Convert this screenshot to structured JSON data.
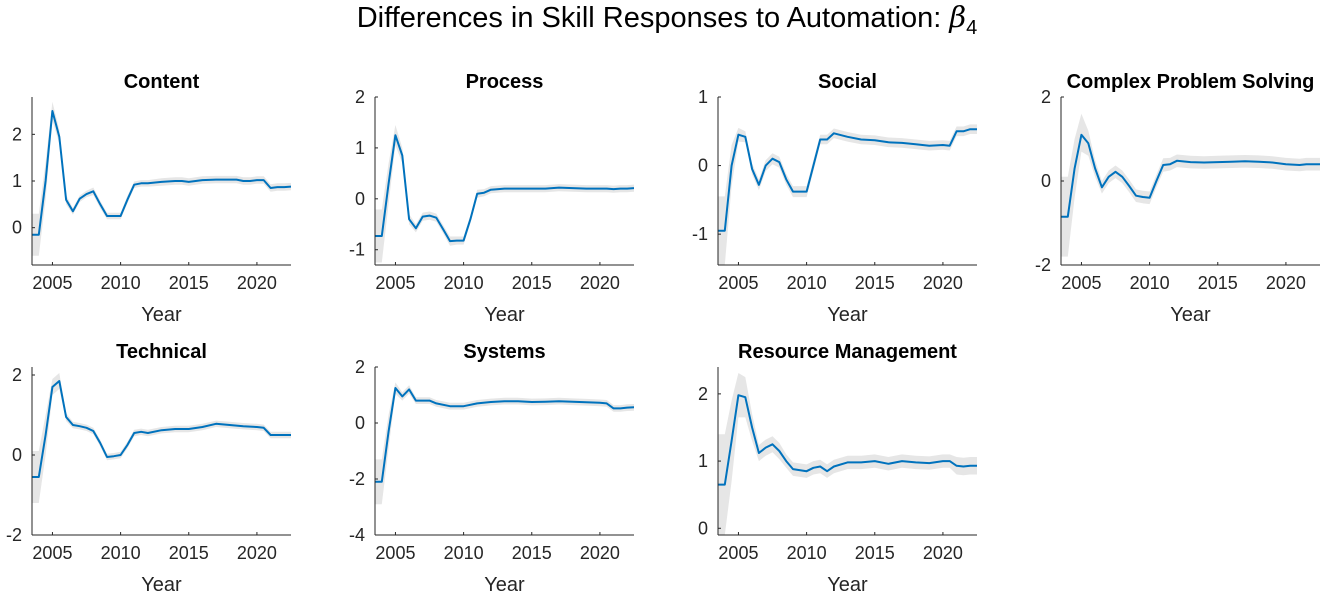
{
  "figure": {
    "title_text": "Differences in Skill Responses to Automation: ",
    "title_symbol": "β",
    "title_subscript": "4",
    "line_color": "#0072BD",
    "band_color": "#E6E6E6"
  },
  "chart_data": [
    {
      "type": "line",
      "title": "Content",
      "xlabel": "Year",
      "ylabel": "",
      "xlim": [
        2003.5,
        2022.5
      ],
      "ylim": [
        -0.8,
        2.8
      ],
      "xticks": [
        2005,
        2010,
        2015,
        2020
      ],
      "yticks": [
        0,
        1,
        2
      ],
      "x": [
        2003.5,
        2004.0,
        2004.5,
        2005.0,
        2005.5,
        2006.0,
        2006.5,
        2007.0,
        2007.5,
        2008.0,
        2008.5,
        2009.0,
        2009.5,
        2010.0,
        2010.5,
        2011.0,
        2011.5,
        2012.0,
        2013.0,
        2014.0,
        2014.5,
        2015.0,
        2016.0,
        2017.0,
        2018.0,
        2018.5,
        2019.0,
        2019.5,
        2020.0,
        2020.5,
        2021.0,
        2021.5,
        2022.0,
        2022.5
      ],
      "series": [
        {
          "values": [
            -0.15,
            -0.15,
            1.0,
            2.5,
            1.95,
            0.6,
            0.35,
            0.62,
            0.72,
            0.78,
            0.5,
            0.25,
            0.25,
            0.25,
            0.6,
            0.92,
            0.95,
            0.95,
            0.98,
            1.0,
            1.0,
            0.98,
            1.02,
            1.03,
            1.03,
            1.03,
            1.0,
            1.0,
            1.02,
            1.02,
            0.85,
            0.87,
            0.87,
            0.88
          ],
          "lower": [
            -0.6,
            -0.6,
            0.6,
            2.3,
            1.8,
            0.5,
            0.28,
            0.55,
            0.65,
            0.7,
            0.42,
            0.18,
            0.18,
            0.18,
            0.52,
            0.85,
            0.88,
            0.88,
            0.9,
            0.92,
            0.92,
            0.9,
            0.94,
            0.95,
            0.95,
            0.95,
            0.92,
            0.92,
            0.94,
            0.94,
            0.77,
            0.79,
            0.79,
            0.8
          ],
          "upper": [
            0.3,
            0.3,
            1.4,
            2.7,
            2.1,
            0.7,
            0.42,
            0.69,
            0.79,
            0.86,
            0.58,
            0.32,
            0.32,
            0.32,
            0.68,
            0.99,
            1.02,
            1.02,
            1.06,
            1.08,
            1.08,
            1.06,
            1.1,
            1.11,
            1.11,
            1.11,
            1.08,
            1.08,
            1.1,
            1.1,
            0.93,
            0.95,
            0.95,
            0.96
          ]
        }
      ]
    },
    {
      "type": "line",
      "title": "Process",
      "xlabel": "Year",
      "ylabel": "",
      "xlim": [
        2003.5,
        2022.5
      ],
      "ylim": [
        -1.3,
        2.0
      ],
      "xticks": [
        2005,
        2010,
        2015,
        2020
      ],
      "yticks": [
        -1,
        0,
        1,
        2
      ],
      "x": [
        2003.5,
        2004.0,
        2004.5,
        2005.0,
        2005.5,
        2006.0,
        2006.5,
        2007.0,
        2007.5,
        2008.0,
        2008.5,
        2009.0,
        2009.5,
        2010.0,
        2010.5,
        2011.0,
        2011.5,
        2012.0,
        2013.0,
        2014.0,
        2015.0,
        2016.0,
        2017.0,
        2018.0,
        2019.0,
        2020.0,
        2020.5,
        2021.0,
        2021.5,
        2022.0,
        2022.5
      ],
      "series": [
        {
          "values": [
            -0.73,
            -0.73,
            0.3,
            1.25,
            0.85,
            -0.4,
            -0.58,
            -0.35,
            -0.33,
            -0.37,
            -0.6,
            -0.83,
            -0.82,
            -0.82,
            -0.4,
            0.1,
            0.12,
            0.18,
            0.2,
            0.2,
            0.2,
            0.2,
            0.22,
            0.21,
            0.2,
            0.2,
            0.2,
            0.19,
            0.2,
            0.2,
            0.21
          ],
          "lower": [
            -1.25,
            -1.25,
            -0.1,
            1.05,
            0.7,
            -0.5,
            -0.66,
            -0.43,
            -0.41,
            -0.45,
            -0.68,
            -0.92,
            -0.9,
            -0.9,
            -0.48,
            0.02,
            0.05,
            0.11,
            0.13,
            0.13,
            0.13,
            0.13,
            0.15,
            0.14,
            0.13,
            0.13,
            0.13,
            0.12,
            0.13,
            0.13,
            0.14
          ],
          "upper": [
            -0.21,
            -0.21,
            0.7,
            1.45,
            1.0,
            -0.3,
            -0.5,
            -0.27,
            -0.25,
            -0.29,
            -0.52,
            -0.74,
            -0.74,
            -0.74,
            -0.32,
            0.18,
            0.19,
            0.25,
            0.27,
            0.27,
            0.27,
            0.27,
            0.29,
            0.28,
            0.27,
            0.27,
            0.27,
            0.26,
            0.27,
            0.27,
            0.28
          ]
        }
      ]
    },
    {
      "type": "line",
      "title": "Social",
      "xlabel": "Year",
      "ylabel": "",
      "xlim": [
        2003.5,
        2022.5
      ],
      "ylim": [
        -1.45,
        1.0
      ],
      "xticks": [
        2005,
        2010,
        2015,
        2020
      ],
      "yticks": [
        -1,
        0,
        1
      ],
      "x": [
        2003.5,
        2004.0,
        2004.5,
        2005.0,
        2005.5,
        2006.0,
        2006.5,
        2007.0,
        2007.5,
        2008.0,
        2008.5,
        2009.0,
        2009.5,
        2010.0,
        2010.5,
        2011.0,
        2011.5,
        2012.0,
        2013.0,
        2014.0,
        2015.0,
        2016.0,
        2017.0,
        2018.0,
        2019.0,
        2020.0,
        2020.5,
        2021.0,
        2021.5,
        2022.0,
        2022.5
      ],
      "series": [
        {
          "values": [
            -0.95,
            -0.95,
            0.0,
            0.45,
            0.42,
            -0.05,
            -0.28,
            0.0,
            0.1,
            0.05,
            -0.2,
            -0.38,
            -0.38,
            -0.38,
            0.0,
            0.38,
            0.38,
            0.47,
            0.42,
            0.38,
            0.37,
            0.34,
            0.33,
            0.31,
            0.29,
            0.3,
            0.29,
            0.5,
            0.5,
            0.53,
            0.53
          ],
          "lower": [
            -1.45,
            -1.45,
            -0.3,
            0.35,
            0.34,
            -0.13,
            -0.36,
            -0.08,
            0.02,
            -0.03,
            -0.28,
            -0.46,
            -0.46,
            -0.46,
            -0.08,
            0.31,
            0.31,
            0.4,
            0.35,
            0.31,
            0.3,
            0.27,
            0.26,
            0.24,
            0.22,
            0.23,
            0.22,
            0.43,
            0.43,
            0.46,
            0.46
          ],
          "upper": [
            -0.45,
            -0.45,
            0.3,
            0.55,
            0.5,
            0.03,
            -0.2,
            0.08,
            0.18,
            0.13,
            -0.12,
            -0.3,
            -0.3,
            -0.3,
            0.08,
            0.45,
            0.45,
            0.54,
            0.49,
            0.45,
            0.44,
            0.41,
            0.4,
            0.38,
            0.36,
            0.37,
            0.36,
            0.57,
            0.57,
            0.6,
            0.6
          ]
        }
      ]
    },
    {
      "type": "line",
      "title": "Complex Problem Solving",
      "xlabel": "Year",
      "ylabel": "",
      "xlim": [
        2003.5,
        2022.5
      ],
      "ylim": [
        -2.0,
        2.0
      ],
      "xticks": [
        2005,
        2010,
        2015,
        2020
      ],
      "yticks": [
        -2,
        0,
        2
      ],
      "x": [
        2003.5,
        2004.0,
        2004.5,
        2005.0,
        2005.5,
        2006.0,
        2006.5,
        2007.0,
        2007.5,
        2008.0,
        2008.5,
        2009.0,
        2009.5,
        2010.0,
        2010.5,
        2011.0,
        2011.5,
        2012.0,
        2013.0,
        2014.0,
        2015.0,
        2016.0,
        2017.0,
        2018.0,
        2019.0,
        2020.0,
        2021.0,
        2021.5,
        2022.0,
        2022.5
      ],
      "series": [
        {
          "values": [
            -0.85,
            -0.85,
            0.3,
            1.1,
            0.9,
            0.3,
            -0.15,
            0.1,
            0.22,
            0.1,
            -0.12,
            -0.35,
            -0.38,
            -0.4,
            0.0,
            0.38,
            0.4,
            0.48,
            0.45,
            0.44,
            0.45,
            0.46,
            0.47,
            0.46,
            0.44,
            0.4,
            0.38,
            0.4,
            0.4,
            0.4
          ],
          "lower": [
            -1.8,
            -1.8,
            -0.4,
            0.7,
            0.6,
            0.1,
            -0.3,
            -0.05,
            0.07,
            -0.05,
            -0.27,
            -0.5,
            -0.53,
            -0.55,
            -0.15,
            0.22,
            0.25,
            0.33,
            0.3,
            0.29,
            0.3,
            0.31,
            0.32,
            0.31,
            0.29,
            0.25,
            0.23,
            0.25,
            0.25,
            0.25
          ],
          "upper": [
            0.1,
            0.1,
            1.0,
            1.6,
            1.2,
            0.5,
            0.0,
            0.25,
            0.37,
            0.25,
            0.03,
            -0.2,
            -0.23,
            -0.25,
            0.15,
            0.54,
            0.55,
            0.63,
            0.6,
            0.59,
            0.6,
            0.61,
            0.62,
            0.61,
            0.59,
            0.55,
            0.53,
            0.55,
            0.55,
            0.55
          ]
        }
      ]
    },
    {
      "type": "line",
      "title": "Technical",
      "xlabel": "Year",
      "ylabel": "",
      "xlim": [
        2003.5,
        2022.5
      ],
      "ylim": [
        -2.0,
        2.2
      ],
      "xticks": [
        2005,
        2010,
        2015,
        2020
      ],
      "yticks": [
        -2,
        0,
        2
      ],
      "x": [
        2003.5,
        2004.0,
        2004.5,
        2005.0,
        2005.5,
        2006.0,
        2006.5,
        2007.0,
        2007.5,
        2008.0,
        2008.5,
        2009.0,
        2009.5,
        2010.0,
        2010.5,
        2011.0,
        2011.5,
        2012.0,
        2013.0,
        2014.0,
        2015.0,
        2016.0,
        2017.0,
        2018.0,
        2019.0,
        2020.0,
        2020.5,
        2021.0,
        2021.5,
        2022.0,
        2022.5
      ],
      "series": [
        {
          "values": [
            -0.55,
            -0.55,
            0.5,
            1.7,
            1.85,
            0.95,
            0.75,
            0.72,
            0.68,
            0.6,
            0.3,
            -0.05,
            -0.03,
            0.0,
            0.25,
            0.55,
            0.58,
            0.55,
            0.62,
            0.65,
            0.65,
            0.7,
            0.78,
            0.75,
            0.72,
            0.7,
            0.68,
            0.5,
            0.5,
            0.5,
            0.5
          ],
          "lower": [
            -1.2,
            -1.2,
            0.0,
            1.5,
            1.65,
            0.85,
            0.67,
            0.64,
            0.6,
            0.52,
            0.22,
            -0.13,
            -0.11,
            -0.08,
            0.17,
            0.47,
            0.5,
            0.47,
            0.54,
            0.57,
            0.57,
            0.62,
            0.7,
            0.67,
            0.64,
            0.62,
            0.6,
            0.42,
            0.42,
            0.42,
            0.42
          ],
          "upper": [
            0.1,
            0.1,
            1.0,
            1.9,
            2.05,
            1.05,
            0.83,
            0.8,
            0.76,
            0.68,
            0.38,
            0.03,
            0.05,
            0.08,
            0.33,
            0.63,
            0.66,
            0.63,
            0.7,
            0.73,
            0.73,
            0.78,
            0.86,
            0.83,
            0.8,
            0.78,
            0.76,
            0.58,
            0.58,
            0.58,
            0.58
          ]
        }
      ]
    },
    {
      "type": "line",
      "title": "Systems",
      "xlabel": "Year",
      "ylabel": "",
      "xlim": [
        2003.5,
        2022.5
      ],
      "ylim": [
        -4.0,
        2.0
      ],
      "xticks": [
        2005,
        2010,
        2015,
        2020
      ],
      "yticks": [
        -4,
        -2,
        0,
        2
      ],
      "x": [
        2003.5,
        2004.0,
        2004.5,
        2005.0,
        2005.5,
        2006.0,
        2006.5,
        2007.0,
        2007.5,
        2008.0,
        2009.0,
        2010.0,
        2011.0,
        2012.0,
        2013.0,
        2014.0,
        2015.0,
        2016.0,
        2017.0,
        2018.0,
        2019.0,
        2020.0,
        2020.5,
        2021.0,
        2021.5,
        2022.0,
        2022.5
      ],
      "series": [
        {
          "values": [
            -2.1,
            -2.1,
            -0.3,
            1.25,
            0.95,
            1.2,
            0.8,
            0.8,
            0.8,
            0.7,
            0.6,
            0.6,
            0.7,
            0.75,
            0.78,
            0.78,
            0.75,
            0.76,
            0.78,
            0.76,
            0.74,
            0.72,
            0.7,
            0.52,
            0.52,
            0.55,
            0.56
          ],
          "lower": [
            -2.9,
            -2.9,
            -0.9,
            1.05,
            0.8,
            1.05,
            0.68,
            0.68,
            0.68,
            0.58,
            0.48,
            0.48,
            0.58,
            0.63,
            0.66,
            0.66,
            0.63,
            0.64,
            0.66,
            0.64,
            0.62,
            0.6,
            0.58,
            0.4,
            0.4,
            0.43,
            0.44
          ],
          "upper": [
            -1.3,
            -1.3,
            0.3,
            1.45,
            1.1,
            1.35,
            0.92,
            0.92,
            0.92,
            0.82,
            0.72,
            0.72,
            0.82,
            0.87,
            0.9,
            0.9,
            0.87,
            0.88,
            0.9,
            0.88,
            0.86,
            0.84,
            0.82,
            0.64,
            0.64,
            0.67,
            0.68
          ]
        }
      ]
    },
    {
      "type": "line",
      "title": "Resource Management",
      "xlabel": "Year",
      "ylabel": "",
      "xlim": [
        2003.5,
        2022.5
      ],
      "ylim": [
        -0.1,
        2.4
      ],
      "xticks": [
        2005,
        2010,
        2015,
        2020
      ],
      "yticks": [
        0,
        1,
        2
      ],
      "x": [
        2003.5,
        2004.0,
        2004.5,
        2005.0,
        2005.5,
        2006.0,
        2006.5,
        2007.0,
        2007.5,
        2008.0,
        2008.5,
        2009.0,
        2010.0,
        2010.5,
        2011.0,
        2011.5,
        2012.0,
        2013.0,
        2014.0,
        2015.0,
        2016.0,
        2017.0,
        2018.0,
        2019.0,
        2020.0,
        2020.5,
        2021.0,
        2021.5,
        2022.0,
        2022.5
      ],
      "series": [
        {
          "values": [
            0.65,
            0.65,
            1.3,
            1.98,
            1.95,
            1.5,
            1.12,
            1.2,
            1.25,
            1.15,
            1.0,
            0.88,
            0.85,
            0.9,
            0.92,
            0.85,
            0.92,
            0.98,
            0.98,
            1.0,
            0.96,
            1.0,
            0.98,
            0.97,
            1.0,
            1.0,
            0.93,
            0.92,
            0.93,
            0.93
          ],
          "lower": [
            -0.1,
            -0.1,
            0.7,
            1.65,
            1.65,
            1.3,
            1.0,
            1.08,
            1.13,
            1.03,
            0.9,
            0.78,
            0.75,
            0.8,
            0.82,
            0.75,
            0.82,
            0.88,
            0.88,
            0.9,
            0.86,
            0.9,
            0.88,
            0.87,
            0.9,
            0.9,
            0.8,
            0.79,
            0.8,
            0.8
          ],
          "upper": [
            1.4,
            1.4,
            1.9,
            2.31,
            2.25,
            1.7,
            1.24,
            1.32,
            1.37,
            1.27,
            1.1,
            0.98,
            0.95,
            1.0,
            1.02,
            0.95,
            1.02,
            1.08,
            1.08,
            1.1,
            1.06,
            1.1,
            1.08,
            1.07,
            1.1,
            1.1,
            1.06,
            1.05,
            1.06,
            1.06
          ]
        }
      ]
    }
  ]
}
